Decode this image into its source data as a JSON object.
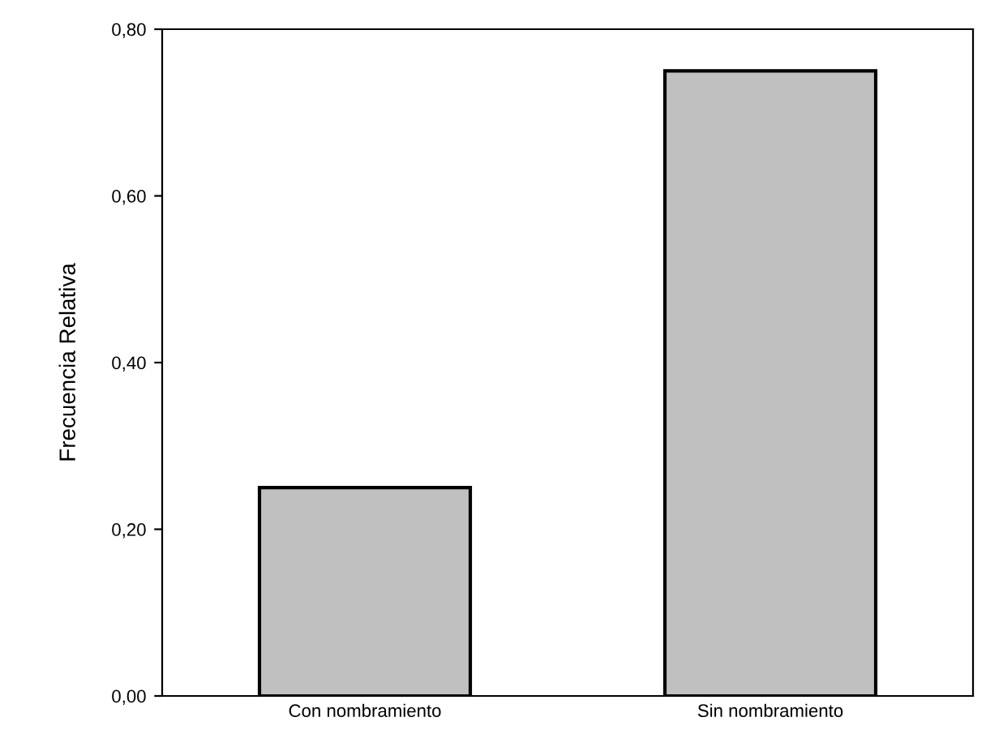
{
  "chart_data": {
    "type": "bar",
    "ylabel": "Frecuencia Relativa",
    "categories": [
      "Con nombramiento",
      "Sin nombramiento"
    ],
    "values": [
      0.25,
      0.75
    ],
    "color": "#c0c0c0",
    "ylim": [
      0,
      0.8
    ],
    "yticks": [
      {
        "value": 0,
        "label": "0,00"
      },
      {
        "value": 0.2,
        "label": "0,20"
      },
      {
        "value": 0.4,
        "label": "0,40"
      },
      {
        "value": 0.6,
        "label": "0,60"
      },
      {
        "value": 0.8,
        "label": "0,80"
      }
    ],
    "grid": false,
    "legend": false
  }
}
